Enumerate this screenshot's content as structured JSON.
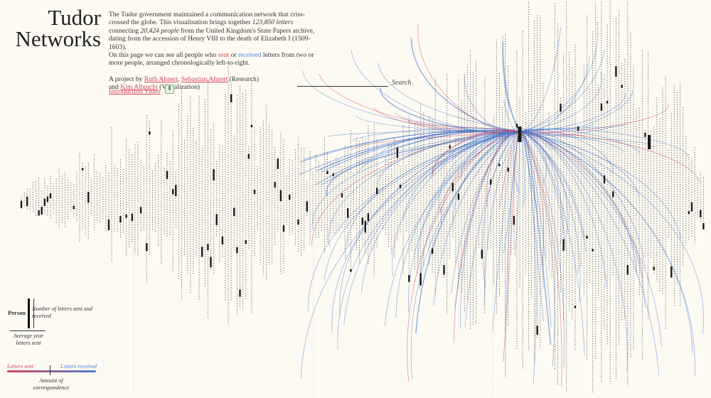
{
  "title": "Tudor Networks",
  "description": {
    "line1_a": "The Tudor government maintained a communication network that criss-crossed the globe. This visualisation brings together ",
    "letters_count": "123,850 letters",
    "line1_b": " connecting ",
    "people_count": "20,424 people",
    "line1_c": " from the United Kingdom's State Papers archive, dating from the accession of Henry VIII to the death of Elizabeth I (1509-1603).",
    "line2_a": "On this page we can see all people who ",
    "sent_word": "sent",
    "line2_b": " or ",
    "received_word": "received",
    "line2_c": " letters from two or more people, arranged chronologically left-to-right."
  },
  "credits": {
    "prefix": "A project by ",
    "author1": "Ruth Ahnert",
    "sep1": ", ",
    "author2": "Sebastian Ahnert",
    "role1": " (Research)",
    "and": "and ",
    "author3": "Kim Albrecht",
    "role2": " (Visualization)"
  },
  "video_link": "Introduction Video",
  "search": {
    "label": "Search",
    "value": ""
  },
  "legend": {
    "person_label": "Person",
    "bar_desc": "Number of letters sent and received",
    "year_desc": "Average year letters sent",
    "sent_label": "Letters sent",
    "received_label": "Letters received",
    "amount_desc": "Amount of correspondence"
  },
  "colors": {
    "background": "#fdfaf2",
    "sent": "#d9465c",
    "received": "#4f7fd6",
    "mark": "#1a1a1a"
  }
}
